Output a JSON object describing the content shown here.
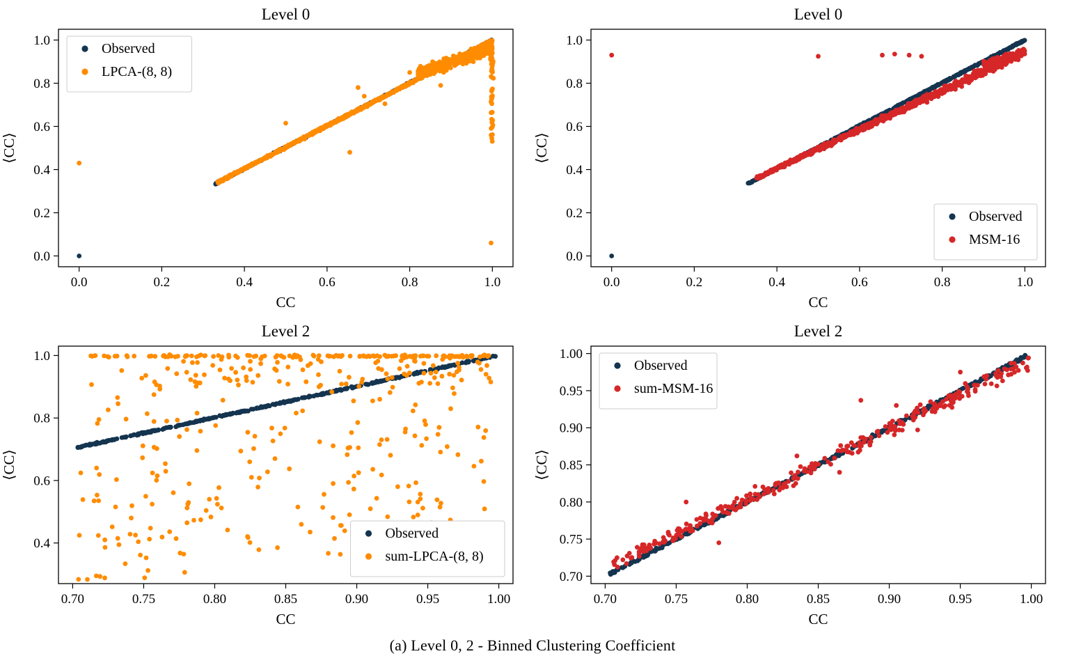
{
  "caption": "(a) Level 0, 2 - Binned Clustering Coefficient",
  "colors": {
    "observed": "#14344f",
    "lpca_orange": "#ff8c00",
    "msm_red": "#d62728",
    "legend_frame": "#cccccc"
  },
  "chart_data": [
    {
      "type": "scatter",
      "title": "Level 0",
      "xlabel": "CC",
      "ylabel": "⟨CC⟩",
      "xlim": [
        -0.05,
        1.05
      ],
      "ylim": [
        -0.05,
        1.05
      ],
      "xticks": {
        "values": [
          0.0,
          0.2,
          0.4,
          0.6,
          0.8,
          1.0
        ],
        "labels": [
          "0.0",
          "0.2",
          "0.4",
          "0.6",
          "0.8",
          "1.0"
        ]
      },
      "yticks": {
        "values": [
          0.0,
          0.2,
          0.4,
          0.6,
          0.8,
          1.0
        ],
        "labels": [
          "0.0",
          "0.2",
          "0.4",
          "0.6",
          "0.8",
          "1.0"
        ]
      },
      "legend": {
        "position": "upper-left",
        "entries": [
          {
            "label": "Observed",
            "color": "#14344f"
          },
          {
            "label": "LPCA-(8, 8)",
            "color": "#ff8c00"
          }
        ]
      },
      "series": [
        {
          "name": "Observed",
          "color": "#14344f",
          "gen": [
            {
              "kind": "diag",
              "x0": 0.33,
              "y0": 0.335,
              "x1": 1.0,
              "y1": 1.0,
              "n": 500,
              "jitter": 0.003,
              "seed": 11
            },
            {
              "kind": "points",
              "points": [
                [
                  0.0,
                  0.0
                ]
              ]
            }
          ]
        },
        {
          "name": "LPCA-(8, 8)",
          "color": "#ff8c00",
          "gen": [
            {
              "kind": "diag",
              "x0": 0.335,
              "y0": 0.34,
              "x1": 1.0,
              "y1": 0.998,
              "n": 700,
              "jitter": 0.005,
              "seed": 21
            },
            {
              "kind": "diag",
              "x0": 0.82,
              "y0": 0.845,
              "x1": 1.0,
              "y1": 0.965,
              "n": 330,
              "jitter": 0.028,
              "seed": 22
            },
            {
              "kind": "vline",
              "x": 0.999,
              "y0": 0.52,
              "y1": 0.99,
              "n": 45,
              "jitter": 0.003,
              "seed": 23
            },
            {
              "kind": "points",
              "points": [
                [
                  0.0,
                  0.43
                ],
                [
                  0.5,
                  0.615
                ],
                [
                  0.655,
                  0.48
                ],
                [
                  0.675,
                  0.78
                ],
                [
                  0.997,
                  0.06
                ],
                [
                  0.875,
                  0.79
                ],
                [
                  0.74,
                  0.705
                ],
                [
                  0.8,
                  0.85
                ],
                [
                  0.69,
                  0.74
                ]
              ]
            }
          ]
        }
      ]
    },
    {
      "type": "scatter",
      "title": "Level 0",
      "xlabel": "CC",
      "ylabel": "⟨CC⟩",
      "xlim": [
        -0.05,
        1.05
      ],
      "ylim": [
        -0.05,
        1.05
      ],
      "xticks": {
        "values": [
          0.0,
          0.2,
          0.4,
          0.6,
          0.8,
          1.0
        ],
        "labels": [
          "0.0",
          "0.2",
          "0.4",
          "0.6",
          "0.8",
          "1.0"
        ]
      },
      "yticks": {
        "values": [
          0.0,
          0.2,
          0.4,
          0.6,
          0.8,
          1.0
        ],
        "labels": [
          "0.0",
          "0.2",
          "0.4",
          "0.6",
          "0.8",
          "1.0"
        ]
      },
      "legend": {
        "position": "lower-right",
        "entries": [
          {
            "label": "Observed",
            "color": "#14344f"
          },
          {
            "label": "MSM-16",
            "color": "#d62728"
          }
        ]
      },
      "series": [
        {
          "name": "Observed",
          "color": "#14344f",
          "gen": [
            {
              "kind": "diag",
              "x0": 0.33,
              "y0": 0.335,
              "x1": 1.0,
              "y1": 1.0,
              "n": 500,
              "jitter": 0.003,
              "seed": 31
            },
            {
              "kind": "points",
              "points": [
                [
                  0.0,
                  0.0
                ]
              ]
            }
          ]
        },
        {
          "name": "MSM-16",
          "color": "#d62728",
          "gen": [
            {
              "kind": "diag",
              "x0": 0.35,
              "y0": 0.36,
              "x1": 1.0,
              "y1": 0.945,
              "n": 850,
              "j0": 0.006,
              "j1": 0.02,
              "seed": 41
            },
            {
              "kind": "diag",
              "x0": 0.9,
              "y0": 0.885,
              "x1": 1.0,
              "y1": 0.945,
              "n": 260,
              "jitter": 0.014,
              "seed": 42
            },
            {
              "kind": "points",
              "points": [
                [
                  0.0,
                  0.93
                ],
                [
                  0.5,
                  0.925
                ],
                [
                  0.655,
                  0.93
                ],
                [
                  0.685,
                  0.935
                ],
                [
                  0.72,
                  0.93
                ],
                [
                  0.75,
                  0.925
                ]
              ]
            }
          ]
        }
      ]
    },
    {
      "type": "scatter",
      "title": "Level 2",
      "xlabel": "CC",
      "ylabel": "⟨CC⟩",
      "xlim": [
        0.69,
        1.01
      ],
      "ylim": [
        0.27,
        1.03
      ],
      "xticks": {
        "values": [
          0.7,
          0.75,
          0.8,
          0.85,
          0.9,
          0.95,
          1.0
        ],
        "labels": [
          "0.70",
          "0.75",
          "0.80",
          "0.85",
          "0.90",
          "0.95",
          "1.00"
        ]
      },
      "yticks": {
        "values": [
          0.4,
          0.6,
          0.8,
          1.0
        ],
        "labels": [
          "0.4",
          "0.6",
          "0.8",
          "1.0"
        ]
      },
      "legend": {
        "position": "lower-right",
        "entries": [
          {
            "label": "Observed",
            "color": "#14344f"
          },
          {
            "label": "sum-LPCA-(8, 8)",
            "color": "#ff8c00"
          }
        ]
      },
      "series": [
        {
          "name": "Observed",
          "color": "#14344f",
          "gen": [
            {
              "kind": "diag",
              "x0": 0.703,
              "y0": 0.705,
              "x1": 0.998,
              "y1": 0.999,
              "n": 420,
              "jitter": 0.0022,
              "seed": 51
            }
          ]
        },
        {
          "name": "sum-LPCA-(8, 8)",
          "color": "#ff8c00",
          "gen": [
            {
              "kind": "hline",
              "y": 0.998,
              "x0": 0.712,
              "x1": 0.999,
              "n": 135,
              "jitter": 0.004,
              "seed": 61
            },
            {
              "kind": "cloud",
              "x0": 0.705,
              "x1": 0.995,
              "y0": 0.36,
              "y1": 0.99,
              "n": 210,
              "seed": 62
            },
            {
              "kind": "cloud",
              "x0": 0.7,
              "x1": 0.78,
              "y0": 0.28,
              "y1": 0.44,
              "n": 22,
              "seed": 63
            },
            {
              "kind": "cloud",
              "x0": 0.78,
              "x1": 0.999,
              "y0": 0.9,
              "y1": 0.995,
              "n": 80,
              "seed": 64
            }
          ]
        }
      ]
    },
    {
      "type": "scatter",
      "title": "Level 2",
      "xlabel": "CC",
      "ylabel": "⟨CC⟩",
      "xlim": [
        0.69,
        1.01
      ],
      "ylim": [
        0.69,
        1.01
      ],
      "xticks": {
        "values": [
          0.7,
          0.75,
          0.8,
          0.85,
          0.9,
          0.95,
          1.0
        ],
        "labels": [
          "0.70",
          "0.75",
          "0.80",
          "0.85",
          "0.90",
          "0.95",
          "1.00"
        ]
      },
      "yticks": {
        "values": [
          0.7,
          0.75,
          0.8,
          0.85,
          0.9,
          0.95,
          1.0
        ],
        "labels": [
          "0.70",
          "0.75",
          "0.80",
          "0.85",
          "0.90",
          "0.95",
          "1.00"
        ]
      },
      "legend": {
        "position": "upper-left",
        "entries": [
          {
            "label": "Observed",
            "color": "#14344f"
          },
          {
            "label": "sum-MSM-16",
            "color": "#d62728"
          }
        ]
      },
      "series": [
        {
          "name": "Observed",
          "color": "#14344f",
          "gen": [
            {
              "kind": "diag",
              "x0": 0.703,
              "y0": 0.703,
              "x1": 0.998,
              "y1": 0.998,
              "n": 420,
              "jitter": 0.002,
              "seed": 71
            }
          ]
        },
        {
          "name": "sum-MSM-16",
          "color": "#d62728",
          "gen": [
            {
              "kind": "diag",
              "x0": 0.705,
              "y0": 0.715,
              "x1": 0.999,
              "y1": 0.99,
              "n": 310,
              "j0": 0.008,
              "j1": 0.012,
              "seed": 81
            },
            {
              "kind": "points",
              "points": [
                [
                  0.757,
                  0.8
                ],
                [
                  0.78,
                  0.745
                ],
                [
                  0.88,
                  0.937
                ],
                [
                  0.92,
                  0.897
                ],
                [
                  0.95,
                  0.975
                ],
                [
                  0.835,
                  0.862
                ],
                [
                  0.865,
                  0.84
                ],
                [
                  0.905,
                  0.93
                ]
              ]
            }
          ]
        }
      ]
    }
  ]
}
